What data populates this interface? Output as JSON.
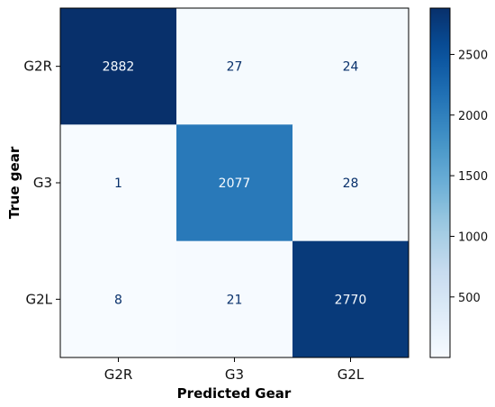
{
  "chart_data": {
    "type": "heatmap",
    "title": "",
    "xlabel": "Predicted Gear",
    "ylabel": "True gear",
    "x_categories": [
      "G2R",
      "G3",
      "G2L"
    ],
    "y_categories": [
      "G2R",
      "G3",
      "G2L"
    ],
    "values": [
      [
        2882,
        27,
        24
      ],
      [
        1,
        2077,
        28
      ],
      [
        8,
        21,
        2770
      ]
    ],
    "colormap": "Blues",
    "colorbar": {
      "range": [
        1,
        2882
      ],
      "ticks": [
        500,
        1000,
        1500,
        2000,
        2500
      ],
      "tick_labels": [
        "500",
        "1000",
        "1500",
        "2000",
        "2500"
      ]
    },
    "colors": {
      "cell_low": "#f7fbff",
      "cell_high": "#08306b",
      "text_on_dark": "#f7fbff",
      "text_on_light": "#08306b"
    },
    "legend": "colorbar right",
    "grid": false
  }
}
